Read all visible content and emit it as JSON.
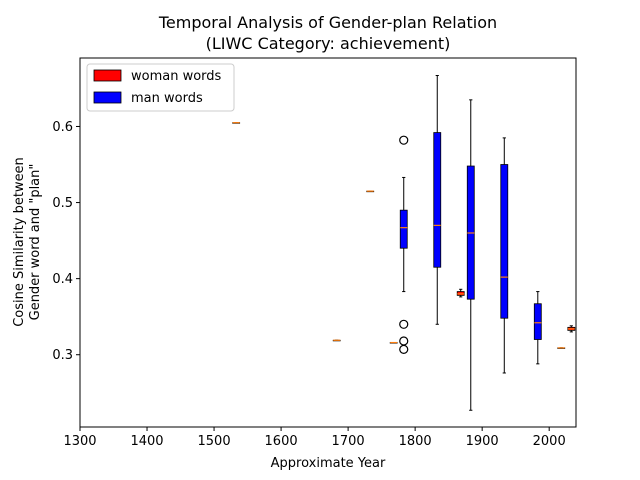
{
  "chart_data": {
    "type": "box",
    "title": "Temporal Analysis of Gender-plan Relation",
    "subtitle": "(LIWC Category: achievement)",
    "xlabel": "Approximate Year",
    "ylabel_line1": "Cosine Similarity between",
    "ylabel_line2": "Gender word and \"plan\"",
    "xlim": [
      1300,
      2040
    ],
    "ylim": [
      0.205,
      0.69
    ],
    "xticks": [
      1300,
      1400,
      1500,
      1600,
      1700,
      1800,
      1900,
      2000
    ],
    "yticks": [
      0.3,
      0.4,
      0.5,
      0.6
    ],
    "legend": {
      "placement": "upper-left",
      "entries": [
        {
          "label": "woman words",
          "color": "#ff0000"
        },
        {
          "label": "man words",
          "color": "#0000ff"
        }
      ]
    },
    "series": [
      {
        "name": "woman words",
        "color": "#ff0000",
        "boxes": [
          {
            "x": 1868,
            "min": 0.376,
            "q1": 0.378,
            "median": 0.38,
            "q3": 0.383,
            "max": 0.386,
            "outliers": []
          },
          {
            "x": 2033,
            "min": 0.33,
            "q1": 0.332,
            "median": 0.334,
            "q3": 0.336,
            "max": 0.338,
            "outliers": []
          }
        ]
      },
      {
        "name": "man words",
        "color": "#0000ff",
        "boxes": [
          {
            "x": 1533,
            "min": 0.605,
            "q1": 0.605,
            "median": 0.605,
            "q3": 0.605,
            "max": 0.605,
            "outliers": []
          },
          {
            "x": 1683,
            "min": 0.319,
            "q1": 0.319,
            "median": 0.319,
            "q3": 0.319,
            "max": 0.319,
            "outliers": []
          },
          {
            "x": 1733,
            "min": 0.515,
            "q1": 0.515,
            "median": 0.515,
            "q3": 0.515,
            "max": 0.515,
            "outliers": []
          },
          {
            "x": 1768,
            "min": 0.316,
            "q1": 0.316,
            "median": 0.316,
            "q3": 0.316,
            "max": 0.316,
            "outliers": []
          },
          {
            "x": 1783,
            "min": 0.383,
            "q1": 0.44,
            "median": 0.467,
            "q3": 0.49,
            "max": 0.533,
            "outliers": [
              0.582,
              0.34,
              0.318,
              0.307
            ]
          },
          {
            "x": 1833,
            "min": 0.34,
            "q1": 0.415,
            "median": 0.47,
            "q3": 0.592,
            "max": 0.667,
            "outliers": []
          },
          {
            "x": 1883,
            "min": 0.227,
            "q1": 0.373,
            "median": 0.46,
            "q3": 0.548,
            "max": 0.635,
            "outliers": []
          },
          {
            "x": 1933,
            "min": 0.276,
            "q1": 0.348,
            "median": 0.402,
            "q3": 0.55,
            "max": 0.585,
            "outliers": []
          },
          {
            "x": 1983,
            "min": 0.288,
            "q1": 0.32,
            "median": 0.342,
            "q3": 0.367,
            "max": 0.383,
            "outliers": []
          },
          {
            "x": 2018,
            "min": 0.309,
            "q1": 0.309,
            "median": 0.309,
            "q3": 0.309,
            "max": 0.309,
            "outliers": []
          }
        ]
      }
    ]
  }
}
